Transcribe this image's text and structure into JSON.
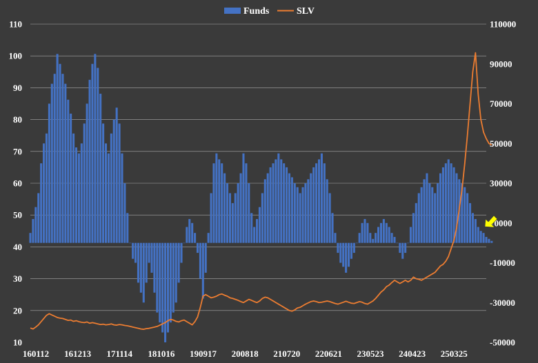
{
  "chart_data": {
    "type": "bar",
    "legend": {
      "position": "top-center",
      "entries": [
        "Funds",
        "SLV"
      ]
    },
    "grid": true,
    "colors": {
      "background": "#3a3a3a",
      "funds": "#4472c4",
      "slv": "#ed7d31",
      "grid": "#bfbfbf",
      "arrow": "#ffff00"
    },
    "left_axis": {
      "ylim": [
        10,
        110
      ],
      "ticks": [
        "10",
        "20",
        "30",
        "40",
        "50",
        "60",
        "70",
        "80",
        "90",
        "100",
        "110"
      ]
    },
    "right_axis": {
      "ylim": [
        -50000,
        110000
      ],
      "ticks": [
        "-50000",
        "-30000",
        "-10000",
        "10000",
        "30000",
        "50000",
        "70000",
        "90000",
        "110000"
      ]
    },
    "x_ticks": [
      "160112",
      "161213",
      "171114",
      "181016",
      "190917",
      "200818",
      "210720",
      "220621",
      "230523",
      "240423",
      "250325"
    ],
    "x_range": [
      0,
      169
    ],
    "series": [
      {
        "name": "Funds",
        "type": "bar",
        "axis": "right",
        "values": [
          5000,
          12000,
          18000,
          25000,
          40000,
          50000,
          55000,
          70000,
          80000,
          85000,
          95000,
          90000,
          85000,
          80000,
          72000,
          65000,
          55000,
          48000,
          45000,
          50000,
          60000,
          70000,
          82000,
          90000,
          95000,
          88000,
          75000,
          60000,
          50000,
          45000,
          55000,
          62000,
          68000,
          60000,
          45000,
          30000,
          15000,
          0,
          -8000,
          -10000,
          -20000,
          -25000,
          -30000,
          -20000,
          -10000,
          -15000,
          -25000,
          -35000,
          -40000,
          -45000,
          -50000,
          -45000,
          -40000,
          -35000,
          -30000,
          -20000,
          -10000,
          0,
          8000,
          12000,
          10000,
          5000,
          -5000,
          -18000,
          -28000,
          -15000,
          5000,
          25000,
          40000,
          45000,
          42000,
          40000,
          35000,
          30000,
          25000,
          20000,
          25000,
          30000,
          35000,
          45000,
          40000,
          30000,
          15000,
          8000,
          12000,
          18000,
          25000,
          32000,
          35000,
          38000,
          40000,
          42000,
          45000,
          42000,
          40000,
          38000,
          35000,
          33000,
          30000,
          28000,
          25000,
          28000,
          30000,
          32000,
          35000,
          38000,
          40000,
          42000,
          45000,
          40000,
          32000,
          25000,
          15000,
          5000,
          -5000,
          -10000,
          -12000,
          -15000,
          -12000,
          -8000,
          -5000,
          0,
          5000,
          10000,
          12000,
          10000,
          5000,
          2000,
          5000,
          8000,
          10000,
          12000,
          10000,
          8000,
          5000,
          3000,
          0,
          -5000,
          -8000,
          -5000,
          0,
          8000,
          15000,
          20000,
          25000,
          28000,
          32000,
          35000,
          30000,
          28000,
          25000,
          30000,
          35000,
          38000,
          40000,
          42000,
          40000,
          38000,
          35000,
          32000,
          30000,
          28000,
          25000,
          20000,
          15000,
          12000,
          8000,
          6000,
          5000,
          3000,
          2000,
          1000
        ]
      },
      {
        "name": "SLV",
        "type": "line",
        "axis": "left",
        "values": [
          14.5,
          14.2,
          14.8,
          15.5,
          16.5,
          17.5,
          18.5,
          19.0,
          18.6,
          18.2,
          17.8,
          17.6,
          17.5,
          17.2,
          16.9,
          17.0,
          16.6,
          16.8,
          16.5,
          16.3,
          16.2,
          16.4,
          16.0,
          16.2,
          16.0,
          15.8,
          15.6,
          15.7,
          15.5,
          15.6,
          15.8,
          15.5,
          15.4,
          15.6,
          15.5,
          15.3,
          15.2,
          15.0,
          14.8,
          14.6,
          14.4,
          14.2,
          14.1,
          14.3,
          14.4,
          14.6,
          14.8,
          15.0,
          15.4,
          15.8,
          16.2,
          16.8,
          17.2,
          17.0,
          16.6,
          16.4,
          16.8,
          17.0,
          16.5,
          16.0,
          15.5,
          16.5,
          18.0,
          21.0,
          24.5,
          25.0,
          24.5,
          24.0,
          24.2,
          24.5,
          25.0,
          25.2,
          24.8,
          24.5,
          24.0,
          23.8,
          23.5,
          23.2,
          22.8,
          22.5,
          23.0,
          23.5,
          23.2,
          22.8,
          22.5,
          23.0,
          23.8,
          24.2,
          24.0,
          23.5,
          23.0,
          22.5,
          22.0,
          21.5,
          21.0,
          20.5,
          20.0,
          19.8,
          20.2,
          20.8,
          21.0,
          21.5,
          22.0,
          22.4,
          22.8,
          23.0,
          22.8,
          22.5,
          22.6,
          22.8,
          23.0,
          22.8,
          22.5,
          22.2,
          22.0,
          22.3,
          22.6,
          22.9,
          22.6,
          22.3,
          22.2,
          22.5,
          22.8,
          22.6,
          22.2,
          22.0,
          22.5,
          23.0,
          23.8,
          24.8,
          25.8,
          26.5,
          27.5,
          28.0,
          28.8,
          29.5,
          29.0,
          28.5,
          29.0,
          29.5,
          29.0,
          29.5,
          30.5,
          30.0,
          29.8,
          29.5,
          30.0,
          30.5,
          31.0,
          31.5,
          32.0,
          33.0,
          34.0,
          34.5,
          35.5,
          37.0,
          39.5,
          42.0,
          46.0,
          52.0,
          58.0,
          66.0,
          75.0,
          85.0,
          95.0,
          101.0,
          88.0,
          80.0,
          76.0,
          74.0,
          72.5,
          72.0
        ]
      }
    ],
    "annotations": [
      "yellow arrow pointing to latest Funds bar"
    ]
  }
}
